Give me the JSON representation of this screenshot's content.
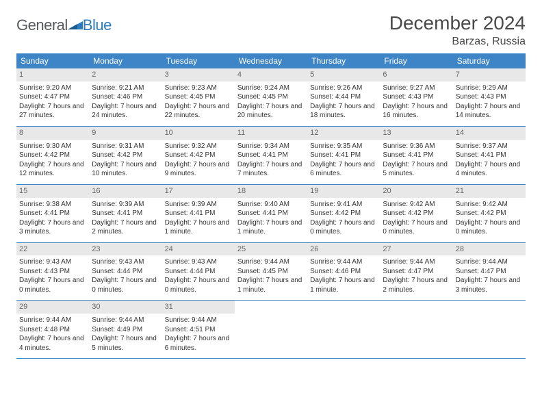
{
  "logo": {
    "general": "General",
    "blue": "Blue"
  },
  "header": {
    "title": "December 2024",
    "location": "Barzas, Russia"
  },
  "colors": {
    "header_bg": "#3d85c6",
    "header_text": "#ffffff",
    "daynum_bg": "#e8e8e8",
    "divider": "#3d85c6",
    "logo_gray": "#555a5f",
    "logo_blue": "#2c7bbf"
  },
  "weekdays": [
    "Sunday",
    "Monday",
    "Tuesday",
    "Wednesday",
    "Thursday",
    "Friday",
    "Saturday"
  ],
  "weeks": [
    [
      {
        "n": "1",
        "sr": "Sunrise: 9:20 AM",
        "ss": "Sunset: 4:47 PM",
        "dl": "Daylight: 7 hours and 27 minutes."
      },
      {
        "n": "2",
        "sr": "Sunrise: 9:21 AM",
        "ss": "Sunset: 4:46 PM",
        "dl": "Daylight: 7 hours and 24 minutes."
      },
      {
        "n": "3",
        "sr": "Sunrise: 9:23 AM",
        "ss": "Sunset: 4:45 PM",
        "dl": "Daylight: 7 hours and 22 minutes."
      },
      {
        "n": "4",
        "sr": "Sunrise: 9:24 AM",
        "ss": "Sunset: 4:45 PM",
        "dl": "Daylight: 7 hours and 20 minutes."
      },
      {
        "n": "5",
        "sr": "Sunrise: 9:26 AM",
        "ss": "Sunset: 4:44 PM",
        "dl": "Daylight: 7 hours and 18 minutes."
      },
      {
        "n": "6",
        "sr": "Sunrise: 9:27 AM",
        "ss": "Sunset: 4:43 PM",
        "dl": "Daylight: 7 hours and 16 minutes."
      },
      {
        "n": "7",
        "sr": "Sunrise: 9:29 AM",
        "ss": "Sunset: 4:43 PM",
        "dl": "Daylight: 7 hours and 14 minutes."
      }
    ],
    [
      {
        "n": "8",
        "sr": "Sunrise: 9:30 AM",
        "ss": "Sunset: 4:42 PM",
        "dl": "Daylight: 7 hours and 12 minutes."
      },
      {
        "n": "9",
        "sr": "Sunrise: 9:31 AM",
        "ss": "Sunset: 4:42 PM",
        "dl": "Daylight: 7 hours and 10 minutes."
      },
      {
        "n": "10",
        "sr": "Sunrise: 9:32 AM",
        "ss": "Sunset: 4:42 PM",
        "dl": "Daylight: 7 hours and 9 minutes."
      },
      {
        "n": "11",
        "sr": "Sunrise: 9:34 AM",
        "ss": "Sunset: 4:41 PM",
        "dl": "Daylight: 7 hours and 7 minutes."
      },
      {
        "n": "12",
        "sr": "Sunrise: 9:35 AM",
        "ss": "Sunset: 4:41 PM",
        "dl": "Daylight: 7 hours and 6 minutes."
      },
      {
        "n": "13",
        "sr": "Sunrise: 9:36 AM",
        "ss": "Sunset: 4:41 PM",
        "dl": "Daylight: 7 hours and 5 minutes."
      },
      {
        "n": "14",
        "sr": "Sunrise: 9:37 AM",
        "ss": "Sunset: 4:41 PM",
        "dl": "Daylight: 7 hours and 4 minutes."
      }
    ],
    [
      {
        "n": "15",
        "sr": "Sunrise: 9:38 AM",
        "ss": "Sunset: 4:41 PM",
        "dl": "Daylight: 7 hours and 3 minutes."
      },
      {
        "n": "16",
        "sr": "Sunrise: 9:39 AM",
        "ss": "Sunset: 4:41 PM",
        "dl": "Daylight: 7 hours and 2 minutes."
      },
      {
        "n": "17",
        "sr": "Sunrise: 9:39 AM",
        "ss": "Sunset: 4:41 PM",
        "dl": "Daylight: 7 hours and 1 minute."
      },
      {
        "n": "18",
        "sr": "Sunrise: 9:40 AM",
        "ss": "Sunset: 4:41 PM",
        "dl": "Daylight: 7 hours and 1 minute."
      },
      {
        "n": "19",
        "sr": "Sunrise: 9:41 AM",
        "ss": "Sunset: 4:42 PM",
        "dl": "Daylight: 7 hours and 0 minutes."
      },
      {
        "n": "20",
        "sr": "Sunrise: 9:42 AM",
        "ss": "Sunset: 4:42 PM",
        "dl": "Daylight: 7 hours and 0 minutes."
      },
      {
        "n": "21",
        "sr": "Sunrise: 9:42 AM",
        "ss": "Sunset: 4:42 PM",
        "dl": "Daylight: 7 hours and 0 minutes."
      }
    ],
    [
      {
        "n": "22",
        "sr": "Sunrise: 9:43 AM",
        "ss": "Sunset: 4:43 PM",
        "dl": "Daylight: 7 hours and 0 minutes."
      },
      {
        "n": "23",
        "sr": "Sunrise: 9:43 AM",
        "ss": "Sunset: 4:44 PM",
        "dl": "Daylight: 7 hours and 0 minutes."
      },
      {
        "n": "24",
        "sr": "Sunrise: 9:43 AM",
        "ss": "Sunset: 4:44 PM",
        "dl": "Daylight: 7 hours and 0 minutes."
      },
      {
        "n": "25",
        "sr": "Sunrise: 9:44 AM",
        "ss": "Sunset: 4:45 PM",
        "dl": "Daylight: 7 hours and 1 minute."
      },
      {
        "n": "26",
        "sr": "Sunrise: 9:44 AM",
        "ss": "Sunset: 4:46 PM",
        "dl": "Daylight: 7 hours and 1 minute."
      },
      {
        "n": "27",
        "sr": "Sunrise: 9:44 AM",
        "ss": "Sunset: 4:47 PM",
        "dl": "Daylight: 7 hours and 2 minutes."
      },
      {
        "n": "28",
        "sr": "Sunrise: 9:44 AM",
        "ss": "Sunset: 4:47 PM",
        "dl": "Daylight: 7 hours and 3 minutes."
      }
    ],
    [
      {
        "n": "29",
        "sr": "Sunrise: 9:44 AM",
        "ss": "Sunset: 4:48 PM",
        "dl": "Daylight: 7 hours and 4 minutes."
      },
      {
        "n": "30",
        "sr": "Sunrise: 9:44 AM",
        "ss": "Sunset: 4:49 PM",
        "dl": "Daylight: 7 hours and 5 minutes."
      },
      {
        "n": "31",
        "sr": "Sunrise: 9:44 AM",
        "ss": "Sunset: 4:51 PM",
        "dl": "Daylight: 7 hours and 6 minutes."
      },
      null,
      null,
      null,
      null
    ]
  ]
}
